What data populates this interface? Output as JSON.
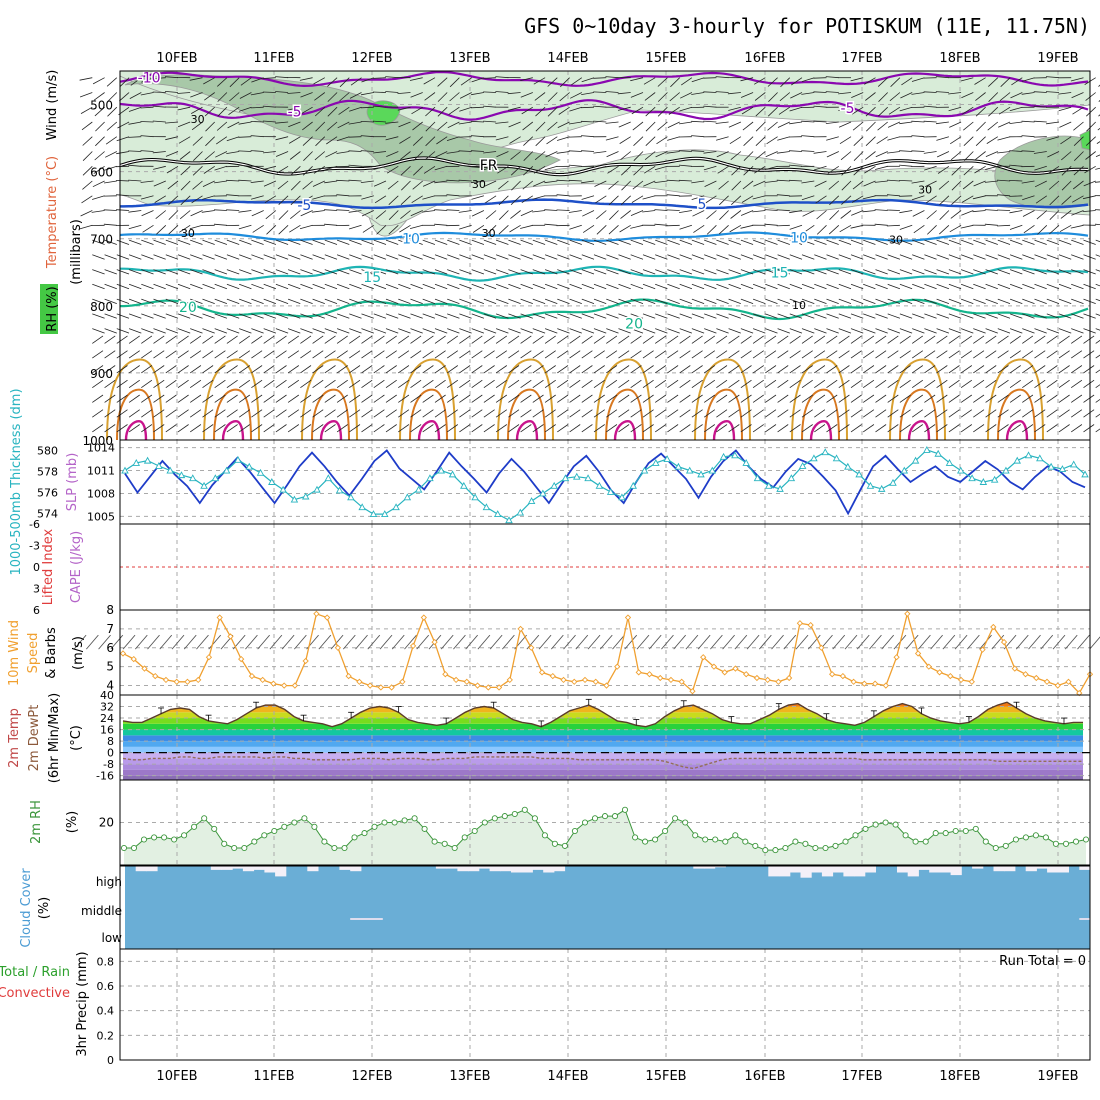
{
  "title": "GFS 0~10day 3-hourly for POTISKUM (11E, 11.75N)",
  "dates": [
    "10FEB",
    "11FEB",
    "12FEB",
    "13FEB",
    "14FEB",
    "15FEB",
    "16FEB",
    "17FEB",
    "18FEB",
    "19FEB"
  ],
  "colors": {
    "temp_purple": "#8a08b0",
    "temp_blue": "#1e50c8",
    "temp_lightblue": "#1e8cdc",
    "temp_teal": "#1eb4b4",
    "temp_green": "#14b48c",
    "orange": "#d8a030",
    "darkorange": "#d87820",
    "magenta": "#c8148c",
    "rh_light": "#d8ecd8",
    "rh_mid": "#a8c8a8",
    "rh_dark": "#6e8e6e",
    "cloud": "#6aaed6",
    "thickness": "#1e3cc8",
    "slp": "#28b4c0",
    "wind10": "#f0a030",
    "rh2m": "#3c963c",
    "dewpt": "#946e5a",
    "lifted": "#e03c3c",
    "cape": "#b464c8"
  },
  "chart_data": [
    {
      "panel": "upper-air",
      "type": "contour",
      "ylabel_parts": [
        "Wind (m/s)",
        "Temperature (°C)",
        "RH (%)"
      ],
      "ylabel2": "(millibars)",
      "pressure_ticks": [
        "500",
        "600",
        "700",
        "800",
        "900",
        "1000"
      ],
      "pressure_levels": [
        500,
        600,
        700,
        800,
        900,
        1000
      ],
      "contour_labels": [
        {
          "text": "-10",
          "level": 460,
          "t": 0.03,
          "kind": "temp"
        },
        {
          "text": "-5",
          "level": 510,
          "t": 0.18,
          "kind": "temp"
        },
        {
          "text": "-5",
          "level": 505,
          "t": 0.75,
          "kind": "temp"
        },
        {
          "text": "FR",
          "level": 590,
          "t": 0.38,
          "kind": "freeze"
        },
        {
          "text": "-5",
          "level": 650,
          "t": 0.19,
          "kind": "temp"
        },
        {
          "text": "5",
          "level": 648,
          "t": 0.6,
          "kind": "temp"
        },
        {
          "text": "10",
          "level": 700,
          "t": 0.3,
          "kind": "temp"
        },
        {
          "text": "10",
          "level": 698,
          "t": 0.7,
          "kind": "temp"
        },
        {
          "text": "15",
          "level": 757,
          "t": 0.26,
          "kind": "temp"
        },
        {
          "text": "15",
          "level": 750,
          "t": 0.68,
          "kind": "temp"
        },
        {
          "text": "20",
          "level": 802,
          "t": 0.07,
          "kind": "temp"
        },
        {
          "text": "20",
          "level": 826,
          "t": 0.53,
          "kind": "temp"
        },
        {
          "text": "30",
          "level": 520,
          "t": 0.08,
          "kind": "rh"
        },
        {
          "text": "30",
          "level": 617,
          "t": 0.37,
          "kind": "rh"
        },
        {
          "text": "30",
          "level": 690,
          "t": 0.07,
          "kind": "rh"
        },
        {
          "text": "30",
          "level": 690,
          "t": 0.38,
          "kind": "rh"
        },
        {
          "text": "30",
          "level": 700,
          "t": 0.8,
          "kind": "rh"
        },
        {
          "text": "30",
          "level": 625,
          "t": 0.83,
          "kind": "rh"
        },
        {
          "text": "10",
          "level": 797,
          "t": 0.7,
          "kind": "rh"
        }
      ]
    },
    {
      "panel": "thickness-slp",
      "type": "line",
      "ylabel_left": "1000-500mb Thickness (dm)",
      "ylabel_right": "SLP (mb)",
      "left_ticks": [
        "574",
        "576",
        "578",
        "580"
      ],
      "right_ticks": [
        "1005",
        "1008",
        "1011",
        "1014"
      ],
      "left_range": [
        573,
        581
      ],
      "right_range": [
        1004,
        1015
      ],
      "series": [
        {
          "name": "1000-500mb Thickness",
          "axis": "left",
          "values": [
            577.8,
            576.0,
            577.5,
            579.0,
            577.7,
            576.6,
            575.0,
            576.7,
            578.0,
            579.3,
            578.0,
            576.5,
            575.0,
            576.7,
            578.5,
            579.8,
            578.5,
            577.0,
            575.7,
            577.3,
            579.0,
            580.0,
            578.3,
            577.3,
            576.3,
            578.0,
            579.8,
            578.5,
            577.3,
            576.0,
            577.8,
            579.2,
            578.0,
            576.5,
            575.0,
            576.8,
            578.5,
            579.5,
            578.0,
            576.2,
            575.0,
            577.0,
            578.8,
            579.7,
            578.5,
            577.3,
            575.5,
            577.5,
            579.0,
            580.0,
            578.5,
            577.3,
            576.5,
            578.0,
            579.2,
            578.7,
            577.5,
            576.2,
            574.0,
            576.3,
            578.5,
            579.5,
            578.2,
            577.0,
            577.8,
            578.5,
            577.5,
            577.0,
            578.0,
            579.0,
            578.2,
            577.0,
            576.3,
            577.5,
            578.5,
            578.0,
            577.0,
            576.5
          ]
        },
        {
          "name": "SLP",
          "axis": "right",
          "values": [
            1011.0,
            1012.0,
            1012.3,
            1011.6,
            1011.0,
            1010.4,
            1010.0,
            1009.0,
            1010.0,
            1011.0,
            1012.4,
            1011.5,
            1010.7,
            1009.5,
            1008.5,
            1007.2,
            1007.6,
            1008.5,
            1010.0,
            1008.4,
            1007.5,
            1006.2,
            1005.3,
            1005.3,
            1006.2,
            1007.5,
            1008.5,
            1010.0,
            1011.0,
            1010.5,
            1009.0,
            1007.5,
            1006.2,
            1005.3,
            1004.5,
            1005.5,
            1007.0,
            1008.0,
            1009.0,
            1010.0,
            1010.2,
            1010.0,
            1009.0,
            1008.2,
            1007.5,
            1009.0,
            1011.0,
            1012.0,
            1012.5,
            1011.5,
            1011.0,
            1010.5,
            1011.0,
            1012.8,
            1013.0,
            1012.0,
            1010.0,
            1009.0,
            1008.6,
            1010.0,
            1011.6,
            1012.6,
            1013.4,
            1012.6,
            1011.5,
            1010.5,
            1009.0,
            1008.6,
            1009.4,
            1011.0,
            1012.3,
            1013.7,
            1013.2,
            1012.0,
            1011.0,
            1010.0,
            1009.5,
            1009.8,
            1011.0,
            1012.3,
            1013.0,
            1012.6,
            1011.5,
            1011.2,
            1011.8,
            1010.5
          ]
        }
      ]
    },
    {
      "panel": "lifted-cape",
      "type": "line",
      "ylabel_left": "Lifted Index",
      "ylabel_right": "CAPE (J/kg)",
      "ticks": [
        "-6",
        "-3",
        "0",
        "3",
        "6"
      ],
      "range": [
        -6,
        6
      ],
      "series": [
        {
          "name": "Lifted Index",
          "values": []
        },
        {
          "name": "CAPE",
          "values": []
        }
      ]
    },
    {
      "panel": "wind10m",
      "type": "line",
      "ylabel_parts": [
        "10m Wind",
        "Speed",
        "& Barbs"
      ],
      "ylabel_units": "(m/s)",
      "ticks": [
        "4",
        "5",
        "6",
        "7",
        "8"
      ],
      "range": [
        3.5,
        8
      ],
      "series": [
        {
          "name": "10m Wind Speed",
          "values": [
            5.7,
            5.4,
            4.9,
            4.5,
            4.3,
            4.2,
            4.2,
            4.3,
            5.5,
            7.6,
            6.6,
            5.4,
            4.5,
            4.3,
            4.1,
            4.0,
            4.0,
            5.3,
            7.8,
            7.6,
            6.0,
            4.5,
            4.2,
            4.0,
            3.9,
            3.9,
            4.2,
            6.1,
            7.6,
            6.3,
            4.6,
            4.3,
            4.2,
            4.0,
            3.9,
            3.9,
            4.3,
            7.0,
            6.0,
            4.7,
            4.5,
            4.3,
            4.2,
            4.3,
            4.2,
            4.0,
            5.0,
            7.6,
            4.7,
            4.6,
            4.4,
            4.3,
            4.2,
            3.7,
            5.5,
            5.0,
            4.7,
            4.9,
            4.6,
            4.4,
            4.3,
            4.2,
            4.4,
            7.3,
            7.2,
            6.0,
            4.6,
            4.5,
            4.2,
            4.1,
            4.1,
            4.0,
            5.5,
            7.8,
            5.7,
            5.0,
            4.7,
            4.5,
            4.3,
            4.2,
            5.9,
            7.1,
            6.3,
            4.9,
            4.6,
            4.4,
            4.2,
            4.0,
            4.2,
            3.6,
            4.6
          ]
        }
      ]
    },
    {
      "panel": "temp2m",
      "type": "area",
      "ylabel_parts": [
        "2m Temp",
        "2m DewPt",
        "(6hr Min/Max)"
      ],
      "ylabel_units": "(°C)",
      "ticks": [
        "40",
        "32",
        "24",
        "16",
        "8",
        "0",
        "-8",
        "-16"
      ],
      "range": [
        -19,
        40
      ],
      "series": [
        {
          "name": "2m Temp",
          "values": [
            22,
            21,
            21,
            24,
            27,
            30,
            31,
            30,
            25,
            22,
            21,
            20,
            23,
            27,
            31,
            33,
            33,
            30,
            25,
            22,
            21,
            20,
            18,
            20,
            24,
            28,
            31,
            32,
            31,
            28,
            23,
            21,
            20,
            19,
            20,
            24,
            28,
            31,
            32,
            31,
            27,
            23,
            21,
            20,
            18,
            21,
            25,
            29,
            31,
            33,
            30,
            26,
            22,
            21,
            19,
            18,
            20,
            25,
            29,
            32,
            33,
            30,
            27,
            23,
            21,
            20,
            20,
            23,
            26,
            30,
            33,
            34,
            30,
            27,
            23,
            21,
            20,
            19,
            21,
            25,
            29,
            32,
            34,
            32,
            27,
            24,
            22,
            21,
            20,
            21,
            25,
            30,
            33,
            35,
            31,
            27,
            24,
            22,
            21,
            20,
            21,
            21
          ]
        },
        {
          "name": "2m DewPt",
          "values": [
            -4,
            -5,
            -5,
            -4,
            -4,
            -4,
            -3,
            -3,
            -4,
            -4,
            -3,
            -3,
            -3,
            -3,
            -3,
            -4,
            -3,
            -3,
            -4,
            -4,
            -5,
            -5,
            -5,
            -5,
            -5,
            -4,
            -4,
            -4,
            -5,
            -4,
            -4,
            -4,
            -5,
            -5,
            -4,
            -4,
            -4,
            -3,
            -3,
            -3,
            -3,
            -3,
            -3,
            -3,
            -4,
            -4,
            -4,
            -4,
            -5,
            -5,
            -5,
            -5,
            -5,
            -5,
            -5,
            -5,
            -5,
            -6,
            -8,
            -10,
            -11,
            -9,
            -7,
            -5,
            -4,
            -4,
            -4,
            -4,
            -4,
            -4,
            -4,
            -4,
            -4,
            -4,
            -4,
            -4,
            -4,
            -4,
            -5,
            -5,
            -5,
            -5,
            -5,
            -5,
            -5,
            -5,
            -5,
            -5,
            -5,
            -5,
            -5,
            -5,
            -6,
            -6,
            -6,
            -6,
            -6,
            -6,
            -6,
            -6,
            -6,
            -6
          ]
        }
      ]
    },
    {
      "panel": "rh2m",
      "type": "area",
      "ylabel": "2m RH",
      "ylabel_units": "(%)",
      "ticks": [
        "20"
      ],
      "range": [
        0,
        40
      ],
      "series": [
        {
          "name": "2m RH",
          "values": [
            8,
            8,
            12,
            13,
            13,
            12,
            14,
            18,
            22,
            17,
            10,
            8,
            8,
            11,
            14,
            16,
            18,
            20,
            22,
            18,
            11,
            8,
            8,
            13,
            15,
            18,
            20,
            20,
            21,
            22,
            17,
            11,
            10,
            8,
            13,
            16,
            20,
            22,
            23,
            24,
            26,
            22,
            14,
            10,
            9,
            16,
            20,
            22,
            23,
            23,
            26,
            13,
            11,
            12,
            16,
            22,
            20,
            14,
            12,
            12,
            11,
            14,
            11,
            9,
            7,
            7,
            8,
            11,
            10,
            8,
            8,
            9,
            11,
            14,
            17,
            19,
            20,
            19,
            14,
            11,
            11,
            15,
            15,
            16,
            16,
            17,
            11,
            8,
            9,
            12,
            13,
            14,
            13,
            10,
            10,
            11,
            12
          ]
        }
      ]
    },
    {
      "panel": "cloud",
      "type": "area",
      "ylabel": "Cloud Cover",
      "ylabel_units": "(%)",
      "level_labels": [
        "high",
        "middle",
        "low"
      ],
      "series": [
        {
          "name": "high",
          "values": [
            100,
            80,
            80,
            100,
            100,
            100,
            100,
            100,
            85,
            85,
            90,
            80,
            85,
            75,
            60,
            100,
            100,
            80,
            100,
            100,
            85,
            80,
            100,
            100,
            100,
            100,
            100,
            100,
            100,
            90,
            90,
            80,
            80,
            90,
            80,
            80,
            75,
            75,
            85,
            75,
            80,
            100,
            100,
            100,
            100,
            100,
            100,
            100,
            100,
            100,
            100,
            100,
            100,
            90,
            90,
            95,
            100,
            100,
            100,
            100,
            60,
            60,
            75,
            55,
            75,
            60,
            75,
            60,
            60,
            75,
            100,
            100,
            75,
            60,
            85,
            75,
            75,
            65,
            100,
            90,
            100,
            80,
            80,
            100,
            80,
            90,
            75,
            75,
            100,
            85
          ]
        },
        {
          "name": "middle",
          "values": [
            0,
            0,
            0,
            0,
            0,
            0,
            0,
            0,
            0,
            0,
            0,
            0,
            0,
            0,
            0,
            0,
            0,
            0,
            0,
            0,
            0,
            12,
            12,
            12,
            0,
            0,
            0,
            0,
            0,
            0,
            0,
            0,
            0,
            0,
            0,
            0,
            0,
            0,
            0,
            0,
            0,
            0,
            0,
            0,
            0,
            0,
            0,
            0,
            0,
            0,
            0,
            0,
            0,
            0,
            0,
            0,
            0,
            0,
            0,
            0,
            0,
            0,
            0,
            0,
            0,
            0,
            0,
            0,
            0,
            0,
            0,
            0,
            0,
            0,
            0,
            0,
            0,
            0,
            0,
            0,
            0,
            0,
            0,
            0,
            0,
            0,
            0,
            0,
            0,
            15
          ]
        },
        {
          "name": "low",
          "values": []
        }
      ]
    },
    {
      "panel": "precip",
      "type": "bar",
      "ylabel_parts": [
        "Total / Rain",
        "Convective"
      ],
      "ylabel": "3hr Precip (mm)",
      "ticks": [
        "0",
        "0.2",
        "0.4",
        "0.6",
        "0.8"
      ],
      "range": [
        0,
        0.9
      ],
      "run_total": "Run Total = 0",
      "series": [
        {
          "name": "Total",
          "values": []
        },
        {
          "name": "Convective",
          "values": []
        }
      ]
    }
  ]
}
